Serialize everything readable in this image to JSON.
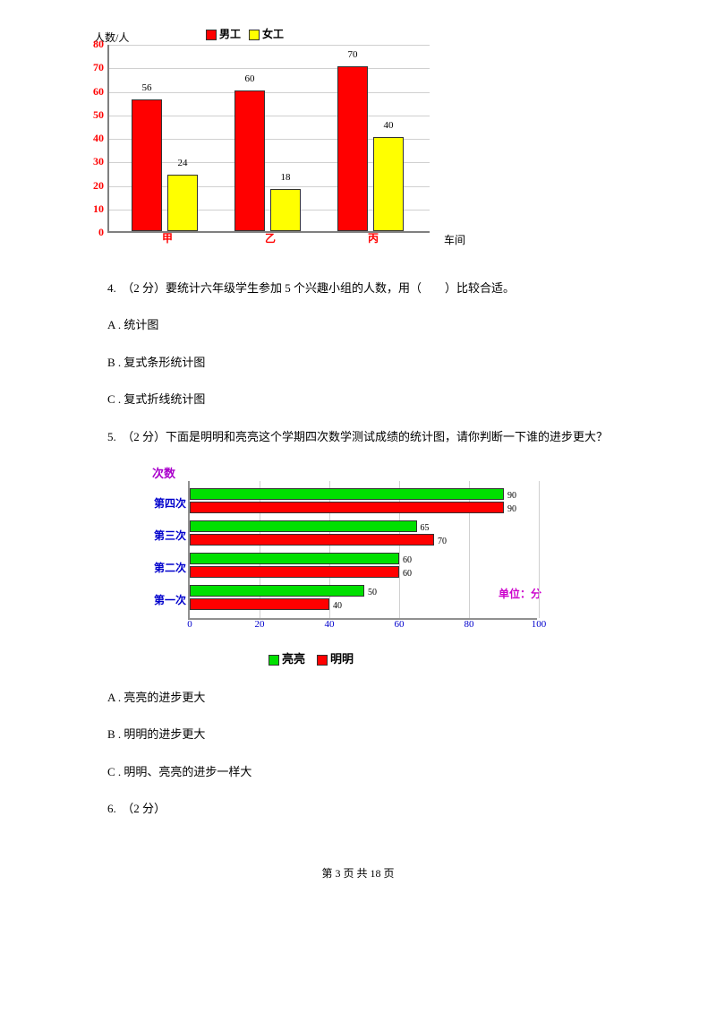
{
  "chart1": {
    "type": "bar",
    "ytitle": "人数/人",
    "xtitle": "车间",
    "legend": [
      {
        "label": "男工",
        "color": "#ff0000"
      },
      {
        "label": "女工",
        "color": "#ffff00"
      }
    ],
    "ymax": 80,
    "ystep": 10,
    "yticks": [
      "0",
      "10",
      "20",
      "30",
      "40",
      "50",
      "60",
      "70",
      "80"
    ],
    "ytick_color": "#ff0000",
    "xlabel_color": "#ff0000",
    "bar_border_color": "#333333",
    "grid_color": "#d0d0d0",
    "categories": [
      {
        "label": "甲",
        "bars": [
          {
            "v": 56,
            "lab": "56",
            "color": "#ff0000"
          },
          {
            "v": 24,
            "lab": "24",
            "color": "#ffff00"
          }
        ]
      },
      {
        "label": "乙",
        "bars": [
          {
            "v": 60,
            "lab": "60",
            "color": "#ff0000"
          },
          {
            "v": 18,
            "lab": "18",
            "color": "#ffff00"
          }
        ]
      },
      {
        "label": "丙",
        "bars": [
          {
            "v": 70,
            "lab": "70",
            "color": "#ff0000"
          },
          {
            "v": 40,
            "lab": "40",
            "color": "#ffff00"
          }
        ]
      }
    ]
  },
  "q4": {
    "text": "4.　（2 分）要统计六年级学生参加 5 个兴趣小组的人数，用（　　）比较合适。",
    "optA": "A . 统计图",
    "optB": "B . 复式条形统计图",
    "optC": "C . 复式折线统计图"
  },
  "q5": {
    "text": "5.　（2 分）下面是明明和亮亮这个学期四次数学测试成绩的统计图，请你判断一下谁的进步更大？",
    "optA": "A . 亮亮的进步更大",
    "optB": "B . 明明的进步更大",
    "optC": "C . 明明、亮亮的进步一样大"
  },
  "chart2": {
    "type": "horizontal_bar",
    "ytitle": "次数",
    "unit": "单位：分",
    "xmax": 100,
    "xstep": 20,
    "xticks": [
      "0",
      "20",
      "40",
      "60",
      "80",
      "100"
    ],
    "xtick_color": "#0000cc",
    "ylabel_color": "#0000cc",
    "ytitle_color": "#aa00cc",
    "unit_color": "#cc00cc",
    "grid_color": "#d0d0d0",
    "legend": [
      {
        "label": "亮亮",
        "color": "#00e000"
      },
      {
        "label": "明明",
        "color": "#ff0000"
      }
    ],
    "rows": [
      {
        "label": "第四次",
        "bars": [
          {
            "v": 90,
            "lab": "90",
            "color": "#00e000"
          },
          {
            "v": 90,
            "lab": "90",
            "color": "#ff0000"
          }
        ]
      },
      {
        "label": "第三次",
        "bars": [
          {
            "v": 65,
            "lab": "65",
            "color": "#00e000"
          },
          {
            "v": 70,
            "lab": "70",
            "color": "#ff0000"
          }
        ]
      },
      {
        "label": "第二次",
        "bars": [
          {
            "v": 60,
            "lab": "60",
            "color": "#00e000"
          },
          {
            "v": 60,
            "lab": "60",
            "color": "#ff0000"
          }
        ]
      },
      {
        "label": "第一次",
        "bars": [
          {
            "v": 50,
            "lab": "50",
            "color": "#00e000"
          },
          {
            "v": 40,
            "lab": "40",
            "color": "#ff0000"
          }
        ]
      }
    ]
  },
  "q6": {
    "text": "6.　（2 分）"
  },
  "footer": {
    "text": "第 3 页 共 18 页"
  }
}
